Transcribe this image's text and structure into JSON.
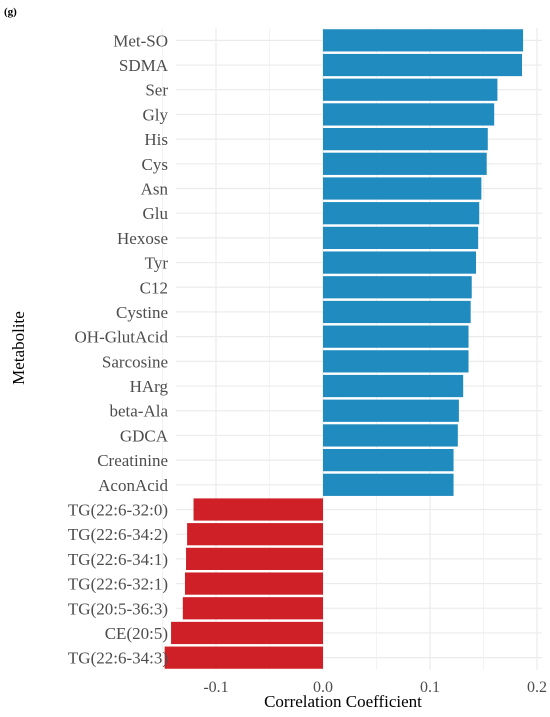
{
  "panel_label": "(g)",
  "chart_data": {
    "type": "bar",
    "orientation": "horizontal",
    "xlabel": "Correlation Coefficient",
    "ylabel": "Metabolite",
    "xlim": [
      -0.16,
      0.2
    ],
    "xticks": [
      -0.1,
      0.0,
      0.1,
      0.2
    ],
    "xtick_labels": [
      "-0.1",
      "0.0",
      "0.1",
      "0.2"
    ],
    "grid": true,
    "legend": "none",
    "colors": {
      "positive": "#1f8bbf",
      "negative": "#cf2027",
      "grid": "#ebebeb"
    },
    "categories": [
      "Met-SO",
      "SDMA",
      "Ser",
      "Gly",
      "His",
      "Cys",
      "Asn",
      "Glu",
      "Hexose",
      "Tyr",
      "C12",
      "Cystine",
      "OH-GlutAcid",
      "Sarcosine",
      "HArg",
      "beta-Ala",
      "GDCA",
      "Creatinine",
      "AconAcid",
      "TG(22:6-32:0)",
      "TG(22:6-34:2)",
      "TG(22:6-34:1)",
      "TG(22:6-32:1)",
      "TG(20:5-36:3)",
      "CE(20:5)",
      "TG(22:6-34:3)"
    ],
    "values": [
      0.187,
      0.186,
      0.163,
      0.16,
      0.154,
      0.153,
      0.148,
      0.146,
      0.145,
      0.143,
      0.139,
      0.138,
      0.136,
      0.136,
      0.131,
      0.127,
      0.126,
      0.122,
      0.122,
      -0.121,
      -0.127,
      -0.128,
      -0.129,
      -0.131,
      -0.142,
      -0.148
    ]
  }
}
